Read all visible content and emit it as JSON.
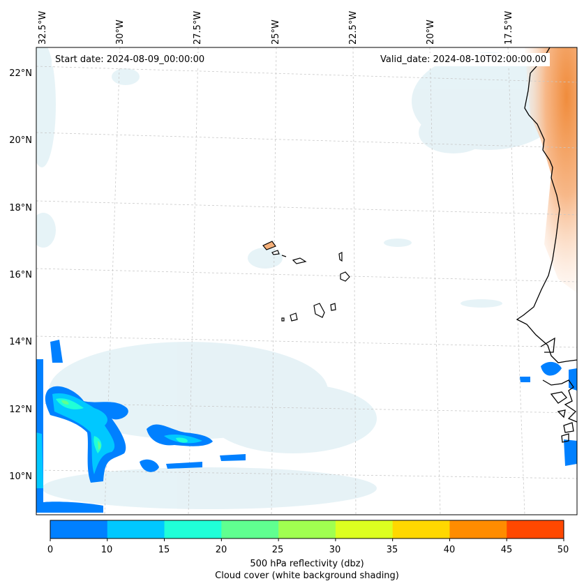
{
  "header": {
    "start_date": "Start date: 2024-08-09_00:00:00",
    "valid_date": "Valid_date: 2024-08-10T02:00:00.00"
  },
  "axes": {
    "lon_labels": [
      "32.5°W",
      "30°W",
      "27.5°W",
      "25°W",
      "22.5°W",
      "20°W",
      "17.5°W"
    ],
    "lat_labels": [
      "22°N",
      "20°N",
      "18°N",
      "16°N",
      "14°N",
      "12°N",
      "10°N"
    ]
  },
  "colorbar": {
    "ticks": [
      "0",
      "10",
      "15",
      "20",
      "25",
      "30",
      "35",
      "40",
      "45",
      "50"
    ],
    "colors": [
      "#0080ff",
      "#00c8ff",
      "#20ffd8",
      "#60ff90",
      "#a0ff50",
      "#dcff20",
      "#ffd800",
      "#ff8c00",
      "#ff4800"
    ],
    "label": "500 hPa reflectivity (dbz)",
    "sublabel": "Cloud cover (white background shading)"
  },
  "map_colors": {
    "coastline": "#000000",
    "land_highlight": "#f5a25a",
    "cloud_blue": "#b8dce8",
    "grid": "#c8c8c8"
  }
}
